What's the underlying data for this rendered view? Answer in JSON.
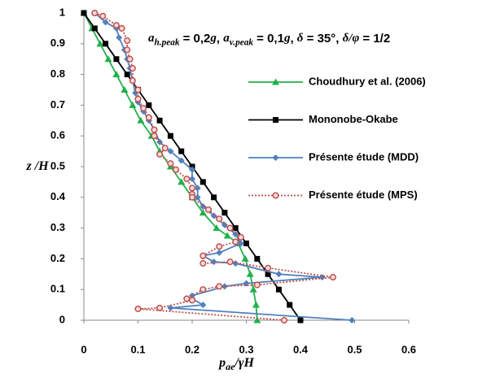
{
  "chart_data": {
    "type": "line",
    "annotation": [
      {
        "text": "a",
        "italic": true
      },
      {
        "text": "h.peak",
        "italic": true,
        "sub": true
      },
      {
        "text": " = 0,2"
      },
      {
        "text": "g",
        "italic": true
      },
      {
        "text": ", "
      },
      {
        "text": "a",
        "italic": true
      },
      {
        "text": "v.peak",
        "italic": true,
        "sub": true
      },
      {
        "text": " = 0,1"
      },
      {
        "text": "g",
        "italic": true
      },
      {
        "text": ", "
      },
      {
        "text": "δ",
        "italic": true
      },
      {
        "text": " = 35°, "
      },
      {
        "text": "δ/φ",
        "italic": true
      },
      {
        "text": " = 1/2"
      }
    ],
    "x_label": [
      {
        "text": "p",
        "italic": true
      },
      {
        "text": "ae",
        "italic": true,
        "sub": true
      },
      {
        "text": "/γH",
        "italic": true
      }
    ],
    "y_label": [
      {
        "text": "z",
        "italic": true
      },
      {
        "text": " /H",
        "italic": true
      }
    ],
    "xlim": [
      0,
      0.6
    ],
    "xticks": [
      0,
      0.1,
      0.2,
      0.3,
      0.4,
      0.5,
      0.6
    ],
    "ylim": [
      0,
      1
    ],
    "yticks": [
      0,
      0.1,
      0.2,
      0.3,
      0.4,
      0.5,
      0.6,
      0.7,
      0.8,
      0.9,
      1
    ],
    "legend": "right",
    "series": [
      {
        "name": "Choudhury et al. (2006)",
        "color": "#22b04b",
        "marker": "triangle",
        "dash": "solid",
        "x": [
          0,
          0.015,
          0.03,
          0.045,
          0.06,
          0.075,
          0.09,
          0.105,
          0.125,
          0.14,
          0.16,
          0.18,
          0.2,
          0.22,
          0.245,
          0.265,
          0.285,
          0.298,
          0.307,
          0.313,
          0.318,
          0.32
        ],
        "y": [
          1,
          0.95,
          0.9,
          0.85,
          0.8,
          0.75,
          0.7,
          0.65,
          0.6,
          0.55,
          0.5,
          0.45,
          0.4,
          0.35,
          0.3,
          0.275,
          0.25,
          0.2,
          0.15,
          0.1,
          0.05,
          0
        ]
      },
      {
        "name": "Mononobe-Okabe",
        "color": "#000000",
        "marker": "square",
        "dash": "solid",
        "x": [
          0,
          0.02,
          0.04,
          0.06,
          0.08,
          0.1,
          0.12,
          0.14,
          0.16,
          0.18,
          0.2,
          0.22,
          0.24,
          0.26,
          0.28,
          0.3,
          0.32,
          0.34,
          0.36,
          0.38,
          0.4
        ],
        "y": [
          1,
          0.95,
          0.9,
          0.85,
          0.8,
          0.75,
          0.7,
          0.65,
          0.6,
          0.55,
          0.5,
          0.45,
          0.4,
          0.35,
          0.3,
          0.25,
          0.2,
          0.15,
          0.1,
          0.05,
          0
        ]
      },
      {
        "name": "Présente étude (MDD)",
        "color": "#4f81bd",
        "marker": "diamond",
        "dash": "solid",
        "x": [
          0.02,
          0.04,
          0.06,
          0.065,
          0.075,
          0.08,
          0.085,
          0.09,
          0.095,
          0.1,
          0.11,
          0.12,
          0.13,
          0.14,
          0.16,
          0.18,
          0.2,
          0.2,
          0.21,
          0.21,
          0.22,
          0.24,
          0.26,
          0.28,
          0.29,
          0.25,
          0.22,
          0.24,
          0.28,
          0.36,
          0.44,
          0.3,
          0.26,
          0.2,
          0.2,
          0.22,
          0.16,
          0.495
        ],
        "y": [
          1,
          0.97,
          0.95,
          0.92,
          0.88,
          0.85,
          0.82,
          0.78,
          0.74,
          0.71,
          0.68,
          0.65,
          0.62,
          0.58,
          0.55,
          0.52,
          0.49,
          0.46,
          0.43,
          0.4,
          0.37,
          0.34,
          0.31,
          0.28,
          0.25,
          0.22,
          0.21,
          0.19,
          0.185,
          0.15,
          0.14,
          0.12,
          0.11,
          0.08,
          0.07,
          0.05,
          0.04,
          0
        ]
      },
      {
        "name": "Présente étude (MPS)",
        "color": "#c0504d",
        "marker": "circle",
        "dash": "dotted",
        "x": [
          0.02,
          0.035,
          0.06,
          0.07,
          0.08,
          0.08,
          0.085,
          0.09,
          0.09,
          0.1,
          0.1,
          0.11,
          0.12,
          0.13,
          0.13,
          0.15,
          0.14,
          0.16,
          0.17,
          0.19,
          0.2,
          0.2,
          0.2,
          0.23,
          0.25,
          0.27,
          0.29,
          0.28,
          0.25,
          0.22,
          0.22,
          0.27,
          0.34,
          0.46,
          0.32,
          0.25,
          0.22,
          0.19,
          0.2,
          0.14,
          0.1,
          0.37
        ],
        "y": [
          1,
          0.99,
          0.96,
          0.95,
          0.91,
          0.88,
          0.85,
          0.82,
          0.78,
          0.75,
          0.72,
          0.69,
          0.66,
          0.62,
          0.6,
          0.56,
          0.54,
          0.51,
          0.49,
          0.46,
          0.43,
          0.41,
          0.4,
          0.36,
          0.33,
          0.3,
          0.27,
          0.255,
          0.24,
          0.21,
          0.185,
          0.19,
          0.17,
          0.14,
          0.115,
          0.11,
          0.1,
          0.07,
          0.065,
          0.04,
          0.037,
          0
        ]
      }
    ]
  }
}
